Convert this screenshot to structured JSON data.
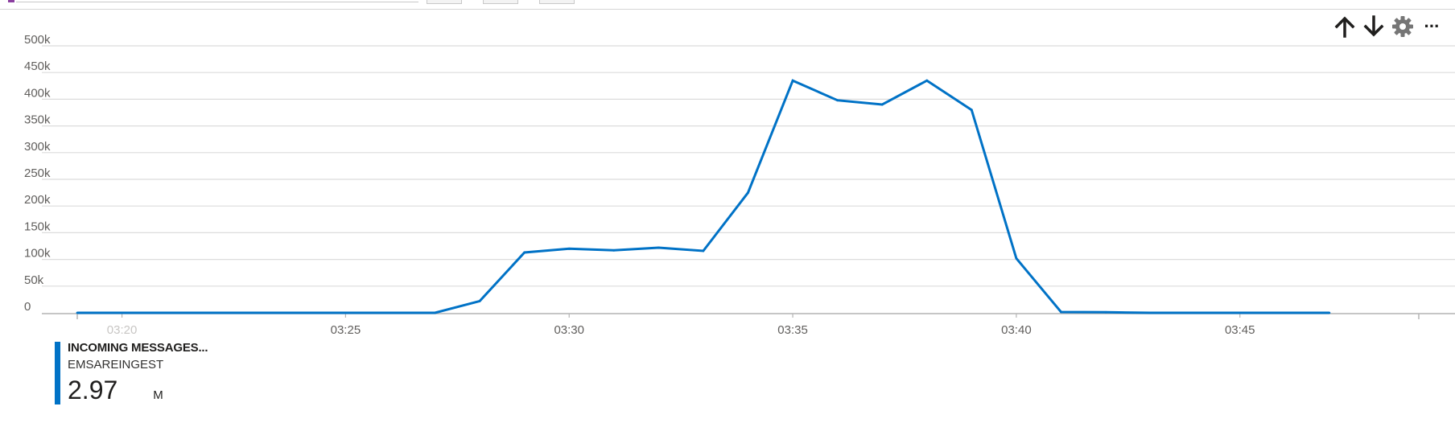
{
  "toolbar": {
    "icons": [
      "arrow-up-icon",
      "arrow-down-icon",
      "gear-icon",
      "more-icon"
    ],
    "more_label": "···"
  },
  "legend": {
    "metric": "INCOMING MESSAGES...",
    "resource": "EMSAREINGEST",
    "total_value": "2.97",
    "total_unit": "M",
    "color": "#0072c6"
  },
  "chart_data": {
    "type": "line",
    "title": "",
    "xlabel": "",
    "ylabel": "",
    "ylim": [
      0,
      500000
    ],
    "y_ticks": [
      0,
      50000,
      100000,
      150000,
      200000,
      250000,
      300000,
      350000,
      400000,
      450000,
      500000
    ],
    "y_tick_labels": [
      "0",
      "50k",
      "100k",
      "150k",
      "200k",
      "250k",
      "300k",
      "350k",
      "400k",
      "450k",
      "500k"
    ],
    "x_range": [
      "03:19",
      "03:49"
    ],
    "x_ticks": [
      "03:20",
      "03:25",
      "03:30",
      "03:35",
      "03:40",
      "03:45"
    ],
    "grid": true,
    "line_color": "#0072c6",
    "series": [
      {
        "x": [
          "03:19",
          "03:20",
          "03:21",
          "03:22",
          "03:23",
          "03:24",
          "03:25",
          "03:26",
          "03:27",
          "03:28",
          "03:29",
          "03:30",
          "03:31",
          "03:32",
          "03:33",
          "03:34",
          "03:35",
          "03:36",
          "03:37",
          "03:38",
          "03:39",
          "03:40",
          "03:41",
          "03:42",
          "03:43",
          "03:44",
          "03:45",
          "03:46",
          "03:47"
        ],
        "values": [
          0,
          0,
          0,
          0,
          0,
          0,
          0,
          0,
          0,
          22000,
          113000,
          120000,
          117000,
          122000,
          116000,
          225000,
          435000,
          398000,
          390000,
          435000,
          380000,
          102000,
          1500,
          1000,
          0,
          0,
          0,
          0,
          0
        ]
      }
    ]
  }
}
